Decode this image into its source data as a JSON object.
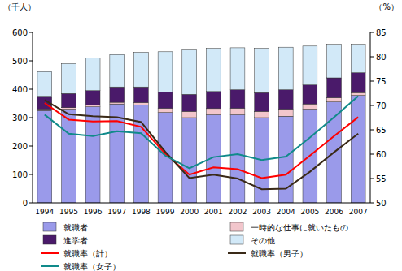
{
  "chart_data": {
    "type": "bar",
    "stacked": true,
    "y_label": "（千人）",
    "y2_label": "（%）",
    "categories": [
      "1994",
      "1995",
      "1996",
      "1997",
      "1998",
      "1999",
      "2000",
      "2001",
      "2002",
      "2003",
      "2004",
      "2005",
      "2006",
      "2007"
    ],
    "ylim": [
      0,
      600
    ],
    "yticks": [
      0,
      100,
      200,
      300,
      400,
      500,
      600
    ],
    "y2lim": [
      50,
      85
    ],
    "y2ticks": [
      50,
      55,
      60,
      65,
      70,
      75,
      80,
      85
    ],
    "grid": false,
    "legend": "bottom",
    "series": [
      {
        "name": "就職者",
        "type": "bar",
        "color": "#9a9aea",
        "values": [
          325,
          330,
          338,
          348,
          345,
          318,
          300,
          310,
          310,
          300,
          305,
          330,
          355,
          378
        ]
      },
      {
        "name": "一時的な仕事に就いたもの",
        "type": "bar",
        "color": "#f2c6cc",
        "values": [
          5,
          5,
          7,
          6,
          8,
          15,
          22,
          22,
          23,
          22,
          25,
          18,
          15,
          10
        ]
      },
      {
        "name": "進学者",
        "type": "bar",
        "color": "#4a1a6a",
        "values": [
          45,
          50,
          50,
          54,
          55,
          57,
          60,
          60,
          65,
          66,
          68,
          67,
          70,
          70
        ]
      },
      {
        "name": "その他",
        "type": "bar",
        "color": "#d2e9f8",
        "values": [
          87,
          105,
          115,
          114,
          122,
          142,
          156,
          152,
          148,
          156,
          150,
          137,
          118,
          100
        ]
      },
      {
        "name": "就職率（計）",
        "type": "line",
        "axis": "y2",
        "color": "#ff0000",
        "values": [
          70.5,
          67.1,
          66.7,
          66.8,
          65.6,
          60.1,
          55.8,
          57.3,
          56.9,
          55.1,
          55.8,
          59.7,
          63.7,
          67.6
        ]
      },
      {
        "name": "就職率（男子）",
        "type": "line",
        "axis": "y2",
        "color": "#3a2a18",
        "values": [
          71.1,
          68.2,
          67.8,
          67.6,
          66.6,
          60.5,
          55.1,
          55.8,
          55.0,
          52.8,
          52.9,
          56.4,
          60.4,
          64.2
        ]
      },
      {
        "name": "就職率（女子）",
        "type": "line",
        "axis": "y2",
        "color": "#108a8a",
        "values": [
          68.1,
          64.2,
          63.7,
          64.7,
          64.3,
          59.7,
          57.1,
          59.4,
          60.0,
          58.8,
          59.5,
          63.4,
          67.6,
          71.9
        ]
      }
    ]
  }
}
